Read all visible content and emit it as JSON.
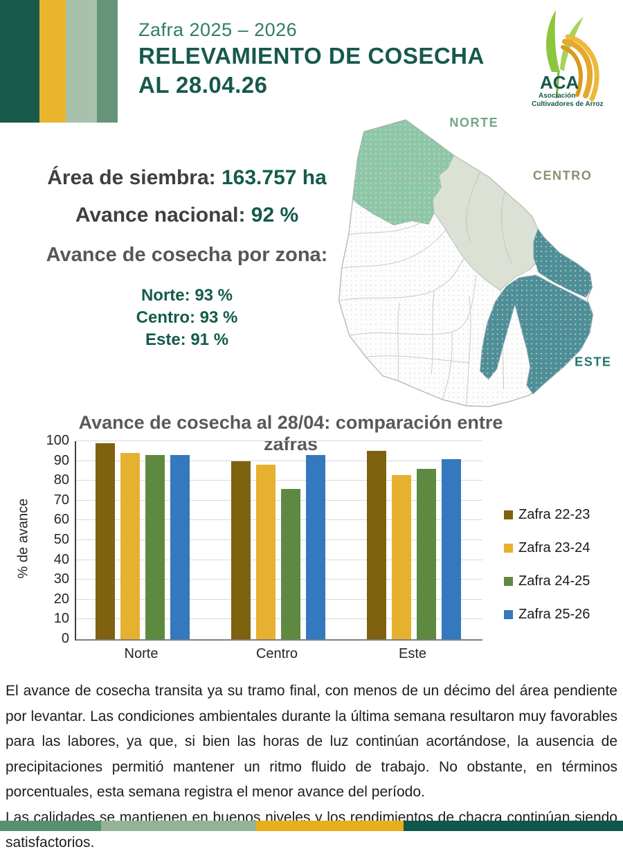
{
  "header": {
    "subtitle": "Zafra 2025 – 2026",
    "title_line1": "RELEVAMIENTO DE COSECHA",
    "title_line2": "AL 28.04.26"
  },
  "logo": {
    "acronym": "ACA",
    "org_line1": "Asociación",
    "org_line2": "Cultivadores de Arroz"
  },
  "map": {
    "labels": {
      "norte": "NORTE",
      "centro": "CENTRO",
      "este": "ESTE"
    },
    "colors": {
      "norte": "#8ec7a8",
      "centro": "#dbe2d5",
      "este": "#4e8e97"
    },
    "label_colors": {
      "norte": "#76a389",
      "centro": "#8f8c71",
      "este": "#25756e"
    }
  },
  "stats": {
    "area_label": "Área de siembra:",
    "area_value": "163.757 ha",
    "national_label": "Avance nacional:",
    "national_value": "92 %",
    "zone_heading": "Avance de cosecha por zona:",
    "zones": [
      {
        "label": "Norte:",
        "value": "93 %"
      },
      {
        "label": "Centro:",
        "value": "93 %"
      },
      {
        "label": "Este:",
        "value": "91 %"
      }
    ]
  },
  "chart_data": {
    "type": "bar",
    "title": "Avance de cosecha al 28/04: comparación entre zafras",
    "categories": [
      "Norte",
      "Centro",
      "Este"
    ],
    "series": [
      {
        "name": "Zafra 22-23",
        "color": "#7e6210",
        "values": [
          99,
          90,
          95
        ]
      },
      {
        "name": "Zafra 23-24",
        "color": "#e6b12e",
        "values": [
          94,
          88,
          83
        ]
      },
      {
        "name": "Zafra 24-25",
        "color": "#5d8a40",
        "values": [
          93,
          76,
          86
        ]
      },
      {
        "name": "Zafra 25-26",
        "color": "#3478bd",
        "values": [
          93,
          93,
          91
        ]
      }
    ],
    "xlabel": "",
    "ylabel": "% de avance",
    "ylim": [
      0,
      100
    ],
    "ytick_step": 10,
    "grid": true,
    "legend_position": "right"
  },
  "body": {
    "paragraph1": "El avance de cosecha transita ya su tramo final, con menos de un décimo del área pendiente por levantar. Las condiciones ambientales durante la última semana resultaron muy favorables para las labores, ya que, si bien las horas de luz continúan acortándose, la ausencia de precipitaciones permitió mantener un ritmo fluido de trabajo. No obstante, en términos porcentuales, esta semana registra el menor avance del período.",
    "paragraph2": "Las calidades se mantienen en buenos niveles y los rendimientos de chacra continúan siendo satisfactorios."
  },
  "decor": {
    "top_stripes": [
      "#175a4b",
      "#e9b52f",
      "#a8c1ab",
      "#659478"
    ],
    "top_stripe_widths": [
      57,
      38,
      45,
      30
    ],
    "bottom_stripes": [
      "#569070",
      "#94b295",
      "#e8af1a",
      "#11574a"
    ],
    "bottom_stripe_widths": [
      146,
      224,
      213,
      317
    ]
  }
}
